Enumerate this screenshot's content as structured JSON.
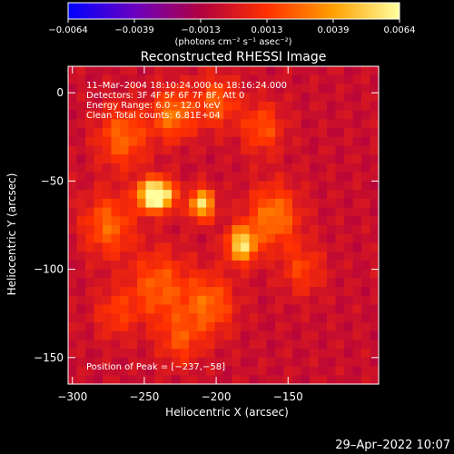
{
  "chart_data": {
    "type": "heatmap",
    "title": "Reconstructed RHESSI Image",
    "xlabel": "Heliocentric X (arcsec)",
    "ylabel": "Heliocentric Y (arcsec)",
    "xlim": [
      -303,
      -87
    ],
    "ylim": [
      -165,
      15
    ],
    "xticks": [
      -300,
      -250,
      -200,
      -150
    ],
    "yticks": [
      0,
      -50,
      -100,
      -150
    ],
    "xtick_labels": [
      "−300",
      "−250",
      "−200",
      "−150"
    ],
    "ytick_labels": [
      "0",
      "−50",
      "−100",
      "−150"
    ],
    "info_lines": [
      "11–Mar–2004 18:10:24.000 to 18:16:24.000",
      "Detectors: 3F 4F 5F 6F 7F 8F, Att 0",
      "Energy Range: 6.0 – 12.0 keV",
      "Clean     Total counts: 6.81E+04"
    ],
    "peak_label": "Position of Peak = [−237,−58]",
    "peak_position": [
      -237,
      -58
    ],
    "colorbar": {
      "range": [
        -0.0064,
        0.0064
      ],
      "tick_labels": [
        "−0.0064",
        "−0.0039",
        "−0.0013",
        "0.0013",
        "0.0039",
        "0.0064"
      ],
      "units": "(photons cm⁻² s⁻¹ asec⁻²)",
      "colors": [
        "#0000ff",
        "#6a00c0",
        "#b00040",
        "#ff3000",
        "#ffa000",
        "#ffffa0"
      ]
    },
    "background_value": -0.0005,
    "sources": [
      {
        "x": -247,
        "y": -58,
        "peak": 0.0062,
        "sigma": 6
      },
      {
        "x": -237,
        "y": -58,
        "peak": 0.0064,
        "sigma": 6
      },
      {
        "x": -210,
        "y": -63,
        "peak": 0.006,
        "sigma": 6
      },
      {
        "x": -182,
        "y": -86,
        "peak": 0.0061,
        "sigma": 7
      },
      {
        "x": -265,
        "y": -25,
        "peak": 0.003,
        "sigma": 12
      },
      {
        "x": -230,
        "y": -12,
        "peak": 0.0035,
        "sigma": 10
      },
      {
        "x": -200,
        "y": -5,
        "peak": 0.0028,
        "sigma": 10
      },
      {
        "x": -168,
        "y": -20,
        "peak": 0.0025,
        "sigma": 10
      },
      {
        "x": -275,
        "y": -75,
        "peak": 0.003,
        "sigma": 12
      },
      {
        "x": -240,
        "y": -110,
        "peak": 0.0028,
        "sigma": 14
      },
      {
        "x": -205,
        "y": -120,
        "peak": 0.003,
        "sigma": 12
      },
      {
        "x": -160,
        "y": -70,
        "peak": 0.0035,
        "sigma": 12
      },
      {
        "x": -140,
        "y": -100,
        "peak": 0.002,
        "sigma": 10
      },
      {
        "x": -225,
        "y": -140,
        "peak": 0.0022,
        "sigma": 10
      },
      {
        "x": -270,
        "y": -125,
        "peak": 0.0018,
        "sigma": 10
      }
    ]
  },
  "footer": {
    "date_stamp": "29–Apr–2022 10:07"
  }
}
